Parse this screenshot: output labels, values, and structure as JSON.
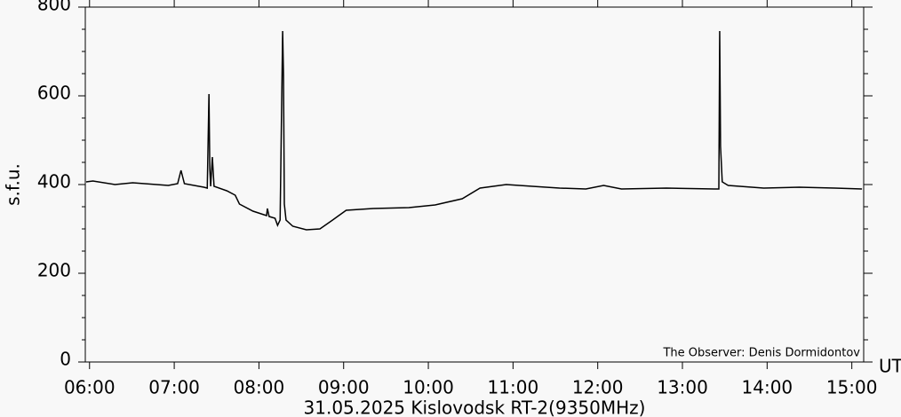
{
  "chart_data": {
    "type": "line",
    "ylabel": "s.f.u.",
    "xlabel": "31.05.2025  Kislovodsk RT-2(9350MHz)",
    "x_unit": "UT",
    "annotation": "The Observer: Denis Dormidontov",
    "color": "#000000",
    "x": [
      5.96,
      6.04,
      6.3,
      6.51,
      6.93,
      7.04,
      7.08,
      7.12,
      7.35,
      7.39,
      7.41,
      7.42,
      7.43,
      7.45,
      7.47,
      7.62,
      7.72,
      7.77,
      7.93,
      8.09,
      8.1,
      8.12,
      8.19,
      8.22,
      8.25,
      8.28,
      8.29,
      8.3,
      8.32,
      8.4,
      8.56,
      8.72,
      8.87,
      9.03,
      9.35,
      9.77,
      10.08,
      10.4,
      10.61,
      10.92,
      11.23,
      11.55,
      11.86,
      12.07,
      12.28,
      12.81,
      13.38,
      13.43,
      13.44,
      13.45,
      13.47,
      13.54,
      13.96,
      14.38,
      14.8,
      15.12
    ],
    "values": [
      406,
      408,
      400,
      404,
      398,
      402,
      432,
      402,
      394,
      392,
      604,
      436,
      396,
      462,
      396,
      386,
      376,
      356,
      340,
      330,
      346,
      328,
      324,
      308,
      320,
      746,
      646,
      356,
      320,
      306,
      298,
      300,
      320,
      342,
      346,
      348,
      354,
      368,
      392,
      400,
      396,
      392,
      390,
      398,
      390,
      392,
      390,
      390,
      746,
      486,
      406,
      398,
      392,
      394,
      392,
      390
    ],
    "xlim": [
      5.95,
      15.14
    ],
    "xticks": [
      {
        "value": 6,
        "label": "06:00"
      },
      {
        "value": 7,
        "label": "07:00"
      },
      {
        "value": 8,
        "label": "08:00"
      },
      {
        "value": 9,
        "label": "09:00"
      },
      {
        "value": 10,
        "label": "10:00"
      },
      {
        "value": 11,
        "label": "11:00"
      },
      {
        "value": 12,
        "label": "12:00"
      },
      {
        "value": 13,
        "label": "13:00"
      },
      {
        "value": 14,
        "label": "14:00"
      },
      {
        "value": 15,
        "label": "15:00"
      }
    ],
    "ylim": [
      0,
      800
    ],
    "yticks": [
      0,
      200,
      400,
      600,
      800
    ],
    "yminorticks": [
      50,
      100,
      150,
      250,
      300,
      350,
      450,
      500,
      550,
      650,
      700,
      750
    ]
  }
}
